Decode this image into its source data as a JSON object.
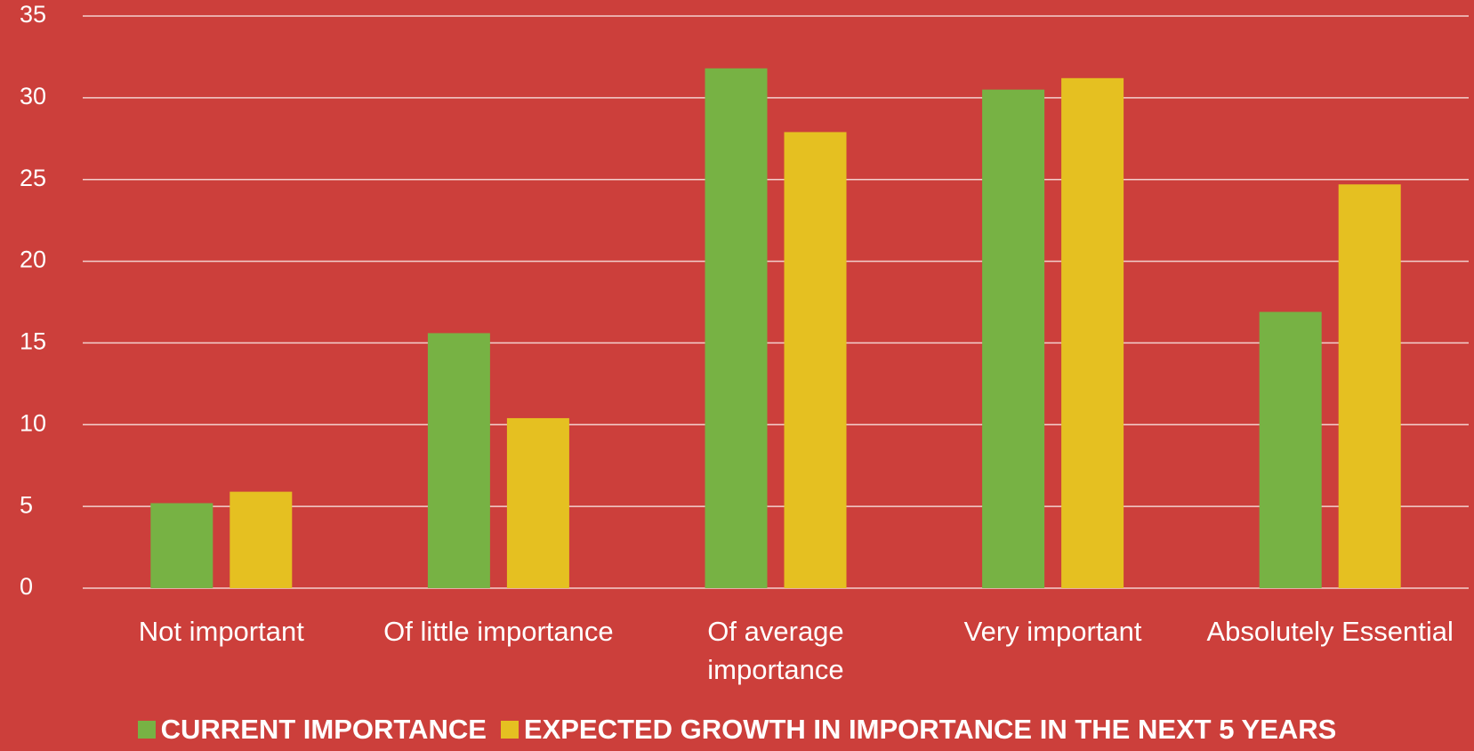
{
  "chart_data": {
    "type": "bar",
    "categories": [
      "Not important",
      "Of little importance",
      "Of average importance",
      "Very important",
      "Absolutely Essential"
    ],
    "series": [
      {
        "name": "CURRENT IMPORTANCE",
        "color": "#77b244",
        "values": [
          5.2,
          15.6,
          31.8,
          30.5,
          16.9
        ]
      },
      {
        "name": "EXPECTED GROWTH IN IMPORTANCE IN THE NEXT 5 YEARS",
        "color": "#e5c021",
        "values": [
          5.9,
          10.4,
          27.9,
          31.2,
          24.7
        ]
      }
    ],
    "ylim": [
      0,
      35
    ],
    "yticks": [
      0,
      5,
      10,
      15,
      20,
      25,
      30,
      35
    ],
    "grid": true,
    "legend": "bottom"
  }
}
